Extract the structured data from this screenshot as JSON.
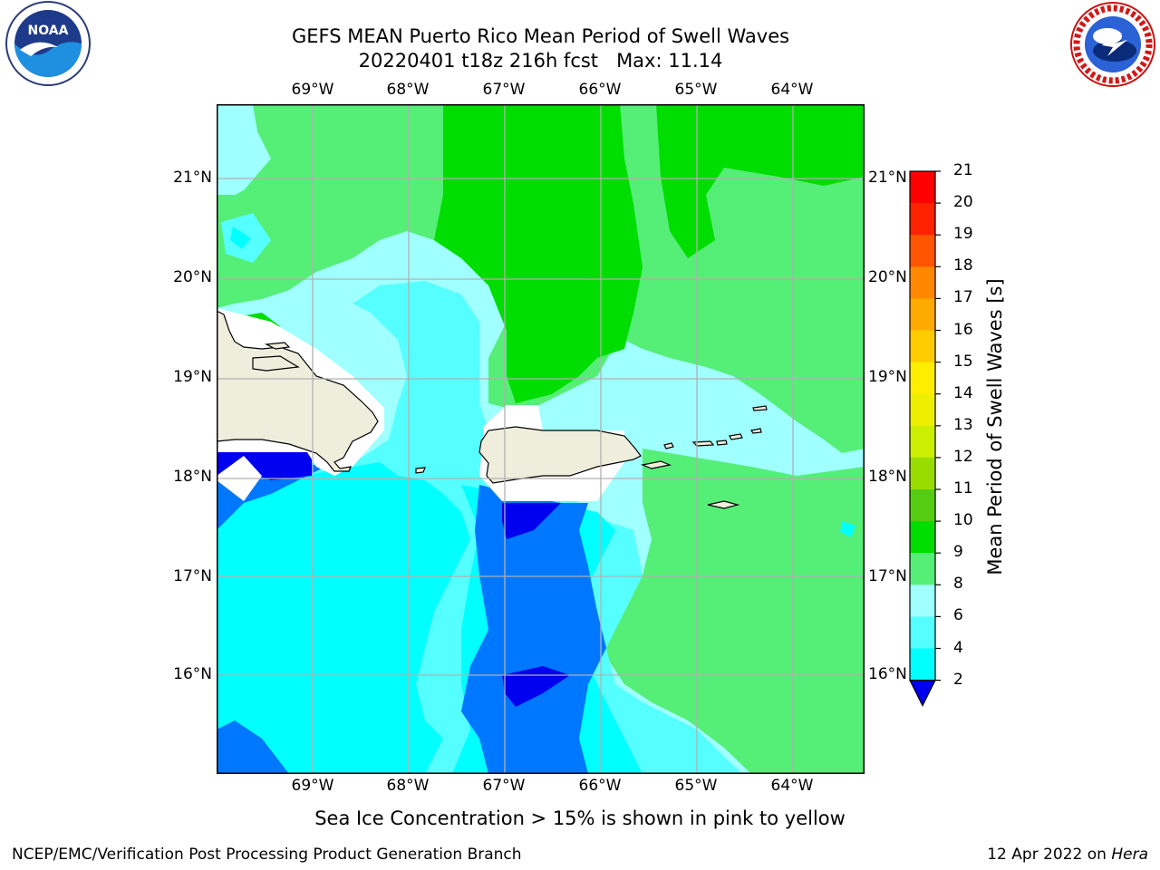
{
  "title_line1": "GEFS MEAN Puerto Rico Mean Period of Swell Waves",
  "title_line2": "20220401 t18z 216h fcst   Max: 11.14",
  "lon_labels": [
    "69°W",
    "68°W",
    "67°W",
    "66°W",
    "65°W",
    "64°W"
  ],
  "lat_labels": [
    "21°N",
    "20°N",
    "19°N",
    "18°N",
    "17°N",
    "16°N"
  ],
  "colorbar": {
    "label": "Mean Period of Swell Waves [s]",
    "ticks": [
      "2",
      "4",
      "6",
      "8",
      "9",
      "10",
      "11",
      "12",
      "13",
      "14",
      "15",
      "16",
      "17",
      "18",
      "19",
      "20",
      "21"
    ],
    "colors": [
      "#0000ee",
      "#0077ff",
      "#00ffff",
      "#55ffff",
      "#a0ffff",
      "#55ee77",
      "#00dd00",
      "#55cc11",
      "#99dd00",
      "#ccee00",
      "#eeee00",
      "#ffee00",
      "#ffcc00",
      "#ffaa00",
      "#ff8800",
      "#ff5500",
      "#ff2200",
      "#ff0000"
    ]
  },
  "notice": "Sea Ice Concentration > 15% is shown in pink to yellow",
  "footer_left": "NCEP/EMC/Verification Post Processing Product Generation Branch",
  "footer_right_prefix": "12 Apr 2022 on ",
  "footer_right_host": "Hera",
  "logos": {
    "noaa": "NOAA",
    "nws": "NATIONAL WEATHER SERVICE"
  },
  "map": {
    "lon_range": [
      -70.0,
      -63.25
    ],
    "lat_range": [
      15.0,
      21.75
    ],
    "grid_lons": [
      -69,
      -68,
      -67,
      -66,
      -65,
      -64
    ],
    "grid_lats": [
      21,
      20,
      19,
      18,
      17,
      16
    ],
    "colors": {
      "deep_blue": "#0000ee",
      "blue": "#0077ff",
      "cyan": "#00ffff",
      "light_cyan": "#55ffff",
      "pale_cyan": "#a0ffff",
      "light_green": "#55ee77",
      "green": "#00dd00",
      "land": "#efeedd",
      "grid": "#b0b0b0"
    }
  }
}
